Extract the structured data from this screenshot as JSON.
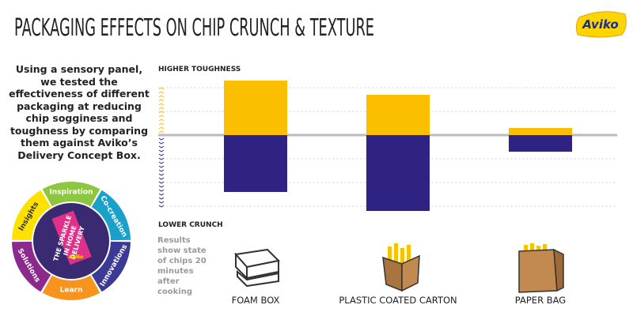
{
  "header": {
    "title": "PACKAGING EFFECTS ON CHIP CRUNCH & TEXTURE",
    "logo": "Aviko"
  },
  "intro": "Using a sensory panel, we tested the effectiveness of different packaging at reducing chip sogginess and toughness by comparing them against Aviko’s Delivery Concept Box.",
  "note": "Results show state of chips 20 minutes after cooking",
  "wheel": {
    "segments": [
      "Inspiration",
      "Co-creation",
      "Innovations",
      "Learn",
      "Solutions",
      "Insights"
    ],
    "center_lines": [
      "THE SPARKLE",
      "IN HOME",
      "DELIVERY"
    ],
    "tag_logo": "Aviko"
  },
  "chart_data": {
    "type": "bar",
    "y_label_top": "HIGHER TOUGHNESS",
    "y_label_bottom": "LOWER CRUNCH",
    "categories": [
      "FOAM BOX",
      "PLASTIC COATED CARTON",
      "PAPER BAG"
    ],
    "series": [
      {
        "color": "#fbbf00",
        "values": [
          2.3,
          1.7,
          0.3
        ]
      },
      {
        "color": "#2e2382",
        "values": [
          -2.4,
          -3.2,
          -0.7
        ]
      }
    ],
    "ylim": [
      -3.5,
      3.5
    ],
    "yticks": [
      -3,
      -2,
      -1,
      0,
      1,
      2
    ],
    "grid": true
  }
}
